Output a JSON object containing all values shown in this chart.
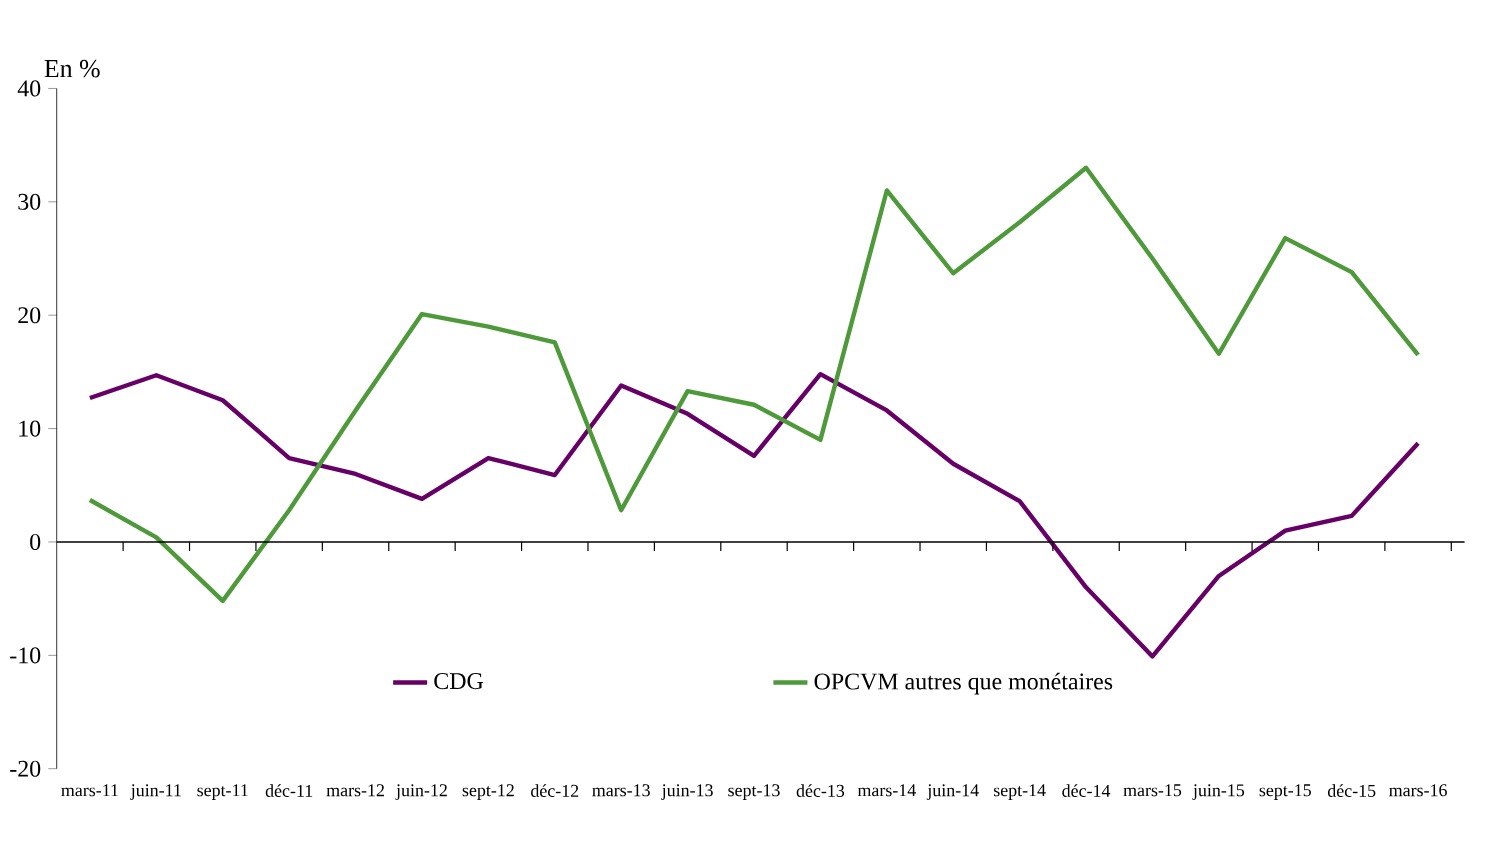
{
  "chart_data": {
    "type": "line",
    "ylabel": "En %",
    "categories": [
      "mars-11",
      "juin-11",
      "sept-11",
      "déc-11",
      "mars-12",
      "juin-12",
      "sept-12",
      "déc-12",
      "mars-13",
      "juin-13",
      "sept-13",
      "déc-13",
      "mars-14",
      "juin-14",
      "sept-14",
      "déc-14",
      "mars-15",
      "juin-15",
      "sept-15",
      "déc-15",
      "mars-16"
    ],
    "series": [
      {
        "name": "CDG",
        "color": "#660066",
        "values": [
          12.7,
          14.7,
          12.5,
          7.4,
          6.0,
          3.8,
          7.4,
          5.9,
          13.8,
          11.3,
          7.6,
          14.8,
          11.6,
          6.9,
          3.6,
          -4.0,
          -10.1,
          -3.0,
          1.0,
          2.3,
          8.7
        ]
      },
      {
        "name": "OPCVM autres que monétaires",
        "color": "#4e9a3a",
        "values": [
          3.7,
          0.4,
          -5.2,
          2.8,
          11.6,
          20.1,
          19.0,
          17.6,
          2.8,
          13.3,
          12.1,
          9.0,
          31.0,
          23.7,
          28.2,
          33.0,
          25.0,
          16.6,
          26.8,
          23.8,
          16.5
        ]
      }
    ],
    "ylim": [
      -20,
      40
    ],
    "yticks": [
      -20,
      -10,
      0,
      10,
      20,
      30,
      40
    ],
    "ref_lines": [
      {
        "axis": "y",
        "value": 0,
        "color": "#000000"
      }
    ],
    "legend": "bottom",
    "marker": "none",
    "line_style": "solid"
  }
}
